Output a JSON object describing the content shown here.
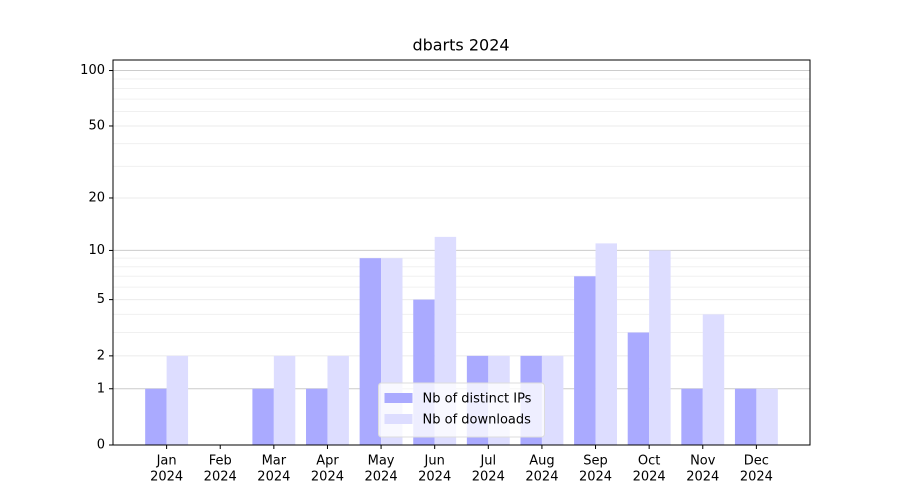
{
  "chart_data": {
    "type": "bar",
    "title": "dbarts 2024",
    "categories": [
      [
        "Jan",
        "2024"
      ],
      [
        "Feb",
        "2024"
      ],
      [
        "Mar",
        "2024"
      ],
      [
        "Apr",
        "2024"
      ],
      [
        "May",
        "2024"
      ],
      [
        "Jun",
        "2024"
      ],
      [
        "Jul",
        "2024"
      ],
      [
        "Aug",
        "2024"
      ],
      [
        "Sep",
        "2024"
      ],
      [
        "Oct",
        "2024"
      ],
      [
        "Nov",
        "2024"
      ],
      [
        "Dec",
        "2024"
      ]
    ],
    "series": [
      {
        "name": "Nb of distinct IPs",
        "color": "#aaaaff",
        "values": [
          1,
          0,
          1,
          1,
          9,
          5,
          2,
          2,
          7,
          3,
          1,
          1
        ]
      },
      {
        "name": "Nb of downloads",
        "color": "#ddddff",
        "values": [
          2,
          0,
          2,
          2,
          9,
          12,
          2,
          2,
          11,
          10,
          4,
          1
        ]
      }
    ],
    "yscale": "log1p",
    "ylim": [
      0,
      114
    ],
    "yticks": [
      0,
      1,
      2,
      5,
      10,
      20,
      50,
      100
    ],
    "yminorticks": [
      3,
      4,
      6,
      7,
      8,
      9,
      30,
      40,
      60,
      70,
      80,
      90
    ],
    "grid": true,
    "legend": "lower center"
  }
}
